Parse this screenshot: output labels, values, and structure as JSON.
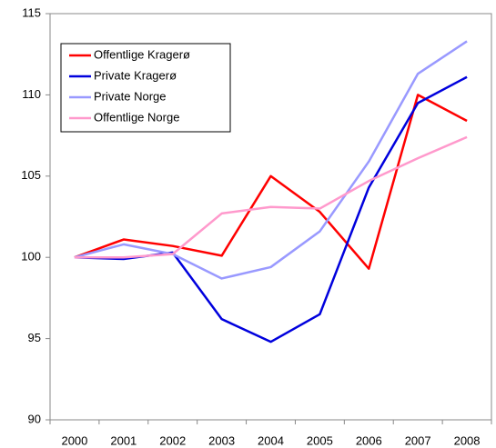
{
  "chart_data": {
    "type": "line",
    "categories": [
      "2000",
      "2001",
      "2002",
      "2003",
      "2004",
      "2005",
      "2006",
      "2007",
      "2008"
    ],
    "series": [
      {
        "name": "Offentlige Kragerø",
        "color": "#ff0000",
        "values": [
          100,
          101.1,
          100.7,
          100.1,
          105,
          102.8,
          99.3,
          110,
          108.4
        ]
      },
      {
        "name": "Private Kragerø",
        "color": "#0000dd",
        "values": [
          100,
          99.9,
          100.3,
          96.2,
          94.8,
          96.5,
          104.3,
          109.5,
          111.1
        ]
      },
      {
        "name": "Private Norge",
        "color": "#9999ff",
        "values": [
          100,
          100.8,
          100.2,
          98.7,
          99.4,
          101.6,
          105.9,
          111.3,
          113.3
        ]
      },
      {
        "name": "Offentlige Norge",
        "color": "#ff99cc",
        "values": [
          100,
          100,
          100.2,
          102.7,
          103.1,
          103,
          104.7,
          106.1,
          107.4
        ]
      }
    ],
    "ylim": [
      90,
      115
    ],
    "yticks": [
      90,
      95,
      100,
      105,
      110,
      115
    ],
    "grid": false,
    "legend": "upper left"
  }
}
